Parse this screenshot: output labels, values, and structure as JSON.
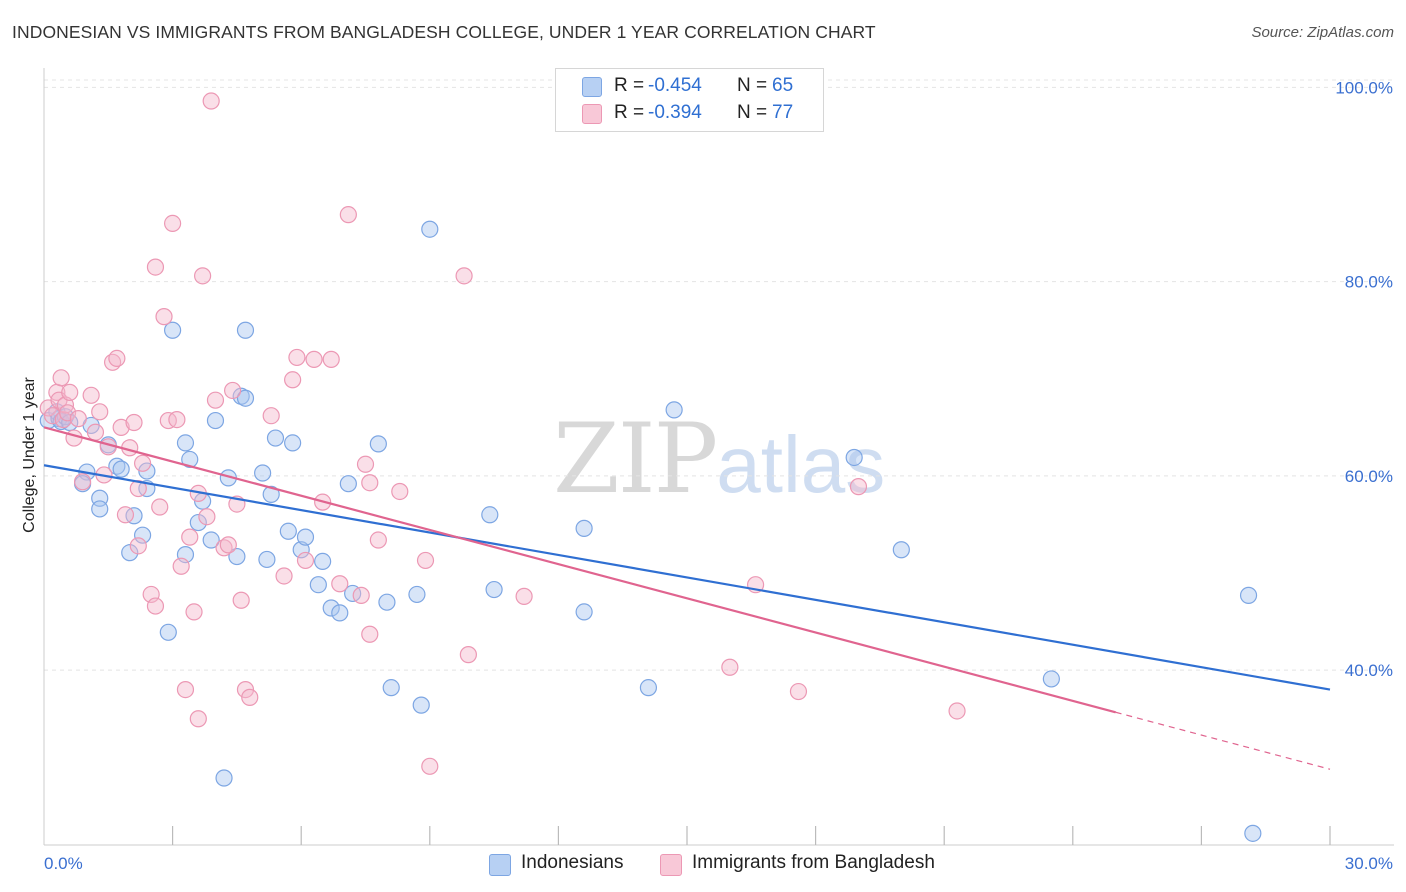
{
  "header": {
    "title": "INDONESIAN VS IMMIGRANTS FROM BANGLADESH COLLEGE, UNDER 1 YEAR CORRELATION CHART",
    "source": "Source: ZipAtlas.com"
  },
  "legend": {
    "r_label": "R =",
    "n_label": "N =",
    "series": [
      {
        "name": "Indonesians",
        "r": "-0.454",
        "n": "65"
      },
      {
        "name": "Immigrants from Bangladesh",
        "r": "-0.394",
        "n": "77"
      }
    ]
  },
  "watermark": {
    "part1": "ZIP",
    "part2": "atlas"
  },
  "colors": {
    "blue_fill": "#a9c6f0",
    "blue_stroke": "#7da6e3",
    "blue_line": "#2f6fd2",
    "pink_fill": "#f5b8cb",
    "pink_stroke": "#ec98b4",
    "pink_line": "#e0648f",
    "tick_text": "#3a6fd0",
    "grid": "#e4e4e4"
  },
  "chart_data": {
    "type": "scatter",
    "title": "INDONESIAN VS IMMIGRANTS FROM BANGLADESH COLLEGE, UNDER 1 YEAR CORRELATION CHART",
    "xlabel": "",
    "ylabel": "College, Under 1 year",
    "xlim": [
      0,
      30
    ],
    "ylim": [
      22,
      102
    ],
    "x_tick_labels": [
      {
        "value": 0,
        "label": "0.0%"
      },
      {
        "value": 30,
        "label": "30.0%"
      }
    ],
    "y_tick_labels": [
      {
        "value": 40,
        "label": "40.0%"
      },
      {
        "value": 60,
        "label": "60.0%"
      },
      {
        "value": 80,
        "label": "80.0%"
      },
      {
        "value": 100,
        "label": "100.0%"
      }
    ],
    "y_gridlines": [
      40,
      60,
      80,
      100
    ],
    "x_minor_ticks": [
      3,
      6,
      9,
      12,
      15,
      18,
      21,
      24,
      27,
      30
    ],
    "series": [
      {
        "name": "Indonesians",
        "color": "blue",
        "trend": {
          "x0": 0,
          "y0": 61.1,
          "x1": 30,
          "y1": 38.0,
          "dashed_from": null
        },
        "points": [
          [
            0.1,
            65.7
          ],
          [
            0.3,
            66.6
          ],
          [
            0.35,
            65.9
          ],
          [
            0.4,
            65.6
          ],
          [
            0.5,
            66.1
          ],
          [
            0.6,
            65.5
          ],
          [
            1.1,
            65.2
          ],
          [
            1.5,
            63.2
          ],
          [
            1.0,
            60.4
          ],
          [
            0.9,
            59.2
          ],
          [
            1.3,
            57.7
          ],
          [
            1.7,
            61.0
          ],
          [
            1.8,
            60.7
          ],
          [
            2.4,
            60.5
          ],
          [
            2.4,
            58.7
          ],
          [
            1.3,
            56.6
          ],
          [
            2.1,
            55.9
          ],
          [
            2.3,
            53.9
          ],
          [
            2.0,
            52.1
          ],
          [
            3.3,
            51.9
          ],
          [
            2.9,
            43.9
          ],
          [
            3.3,
            63.4
          ],
          [
            3.4,
            61.7
          ],
          [
            3.6,
            55.2
          ],
          [
            3.7,
            57.4
          ],
          [
            3.9,
            53.4
          ],
          [
            4.0,
            65.7
          ],
          [
            4.3,
            59.8
          ],
          [
            4.5,
            51.7
          ],
          [
            4.6,
            68.2
          ],
          [
            4.7,
            68.0
          ],
          [
            4.7,
            75.0
          ],
          [
            5.1,
            60.3
          ],
          [
            5.2,
            51.4
          ],
          [
            5.3,
            58.1
          ],
          [
            5.4,
            63.9
          ],
          [
            5.7,
            54.3
          ],
          [
            5.8,
            63.4
          ],
          [
            6.0,
            52.4
          ],
          [
            6.1,
            53.7
          ],
          [
            6.4,
            48.8
          ],
          [
            6.5,
            51.2
          ],
          [
            6.7,
            46.4
          ],
          [
            6.9,
            45.9
          ],
          [
            7.1,
            59.2
          ],
          [
            7.2,
            47.9
          ],
          [
            7.8,
            63.3
          ],
          [
            8.0,
            47.0
          ],
          [
            8.1,
            38.2
          ],
          [
            8.7,
            47.8
          ],
          [
            8.8,
            36.4
          ],
          [
            9.0,
            85.4
          ],
          [
            10.4,
            56.0
          ],
          [
            10.5,
            48.3
          ],
          [
            12.6,
            46.0
          ],
          [
            12.6,
            54.6
          ],
          [
            14.1,
            38.2
          ],
          [
            14.7,
            66.8
          ],
          [
            18.9,
            61.9
          ],
          [
            20.0,
            52.4
          ],
          [
            23.5,
            39.1
          ],
          [
            28.1,
            47.7
          ],
          [
            28.2,
            23.2
          ],
          [
            3.0,
            75.0
          ],
          [
            4.2,
            28.9
          ]
        ]
      },
      {
        "name": "Immigrants from Bangladesh",
        "color": "pink",
        "trend": {
          "x0": 0,
          "y0": 65.0,
          "x1": 30,
          "y1": 29.8,
          "dashed_from": 25.0
        },
        "points": [
          [
            0.1,
            67.0
          ],
          [
            0.2,
            66.2
          ],
          [
            0.3,
            68.6
          ],
          [
            0.35,
            67.8
          ],
          [
            0.4,
            70.1
          ],
          [
            0.45,
            65.8
          ],
          [
            0.5,
            67.3
          ],
          [
            0.55,
            66.5
          ],
          [
            0.6,
            68.6
          ],
          [
            0.7,
            63.9
          ],
          [
            0.8,
            65.9
          ],
          [
            0.9,
            59.4
          ],
          [
            1.1,
            68.3
          ],
          [
            1.2,
            64.5
          ],
          [
            1.3,
            66.6
          ],
          [
            1.4,
            60.1
          ],
          [
            1.5,
            63.0
          ],
          [
            1.6,
            71.7
          ],
          [
            1.7,
            72.1
          ],
          [
            1.8,
            65.0
          ],
          [
            1.9,
            56.0
          ],
          [
            2.0,
            62.9
          ],
          [
            2.1,
            65.5
          ],
          [
            2.2,
            52.8
          ],
          [
            2.2,
            58.7
          ],
          [
            2.3,
            61.3
          ],
          [
            2.5,
            47.8
          ],
          [
            2.6,
            46.6
          ],
          [
            2.6,
            81.5
          ],
          [
            2.7,
            56.8
          ],
          [
            2.8,
            76.4
          ],
          [
            2.9,
            65.7
          ],
          [
            3.0,
            86.0
          ],
          [
            3.1,
            65.8
          ],
          [
            3.2,
            50.7
          ],
          [
            3.3,
            38.0
          ],
          [
            3.4,
            53.7
          ],
          [
            3.5,
            46.0
          ],
          [
            3.6,
            58.2
          ],
          [
            3.7,
            80.6
          ],
          [
            3.8,
            55.8
          ],
          [
            3.9,
            98.6
          ],
          [
            4.0,
            67.8
          ],
          [
            4.2,
            52.6
          ],
          [
            4.3,
            52.9
          ],
          [
            4.4,
            68.8
          ],
          [
            4.5,
            57.1
          ],
          [
            4.6,
            47.2
          ],
          [
            4.7,
            38.0
          ],
          [
            4.8,
            37.2
          ],
          [
            5.3,
            66.2
          ],
          [
            5.6,
            49.7
          ],
          [
            5.8,
            69.9
          ],
          [
            5.9,
            72.2
          ],
          [
            6.1,
            51.3
          ],
          [
            6.3,
            72.0
          ],
          [
            6.5,
            57.3
          ],
          [
            6.7,
            72.0
          ],
          [
            6.9,
            48.9
          ],
          [
            7.1,
            86.9
          ],
          [
            7.4,
            47.7
          ],
          [
            7.5,
            61.2
          ],
          [
            7.6,
            59.3
          ],
          [
            7.8,
            53.4
          ],
          [
            7.6,
            43.7
          ],
          [
            8.3,
            58.4
          ],
          [
            8.9,
            51.3
          ],
          [
            9.0,
            30.1
          ],
          [
            9.8,
            80.6
          ],
          [
            9.9,
            41.6
          ],
          [
            11.2,
            47.6
          ],
          [
            16.0,
            40.3
          ],
          [
            16.6,
            48.8
          ],
          [
            17.6,
            37.8
          ],
          [
            19.0,
            58.9
          ],
          [
            21.3,
            35.8
          ],
          [
            3.6,
            35.0
          ]
        ]
      }
    ]
  }
}
